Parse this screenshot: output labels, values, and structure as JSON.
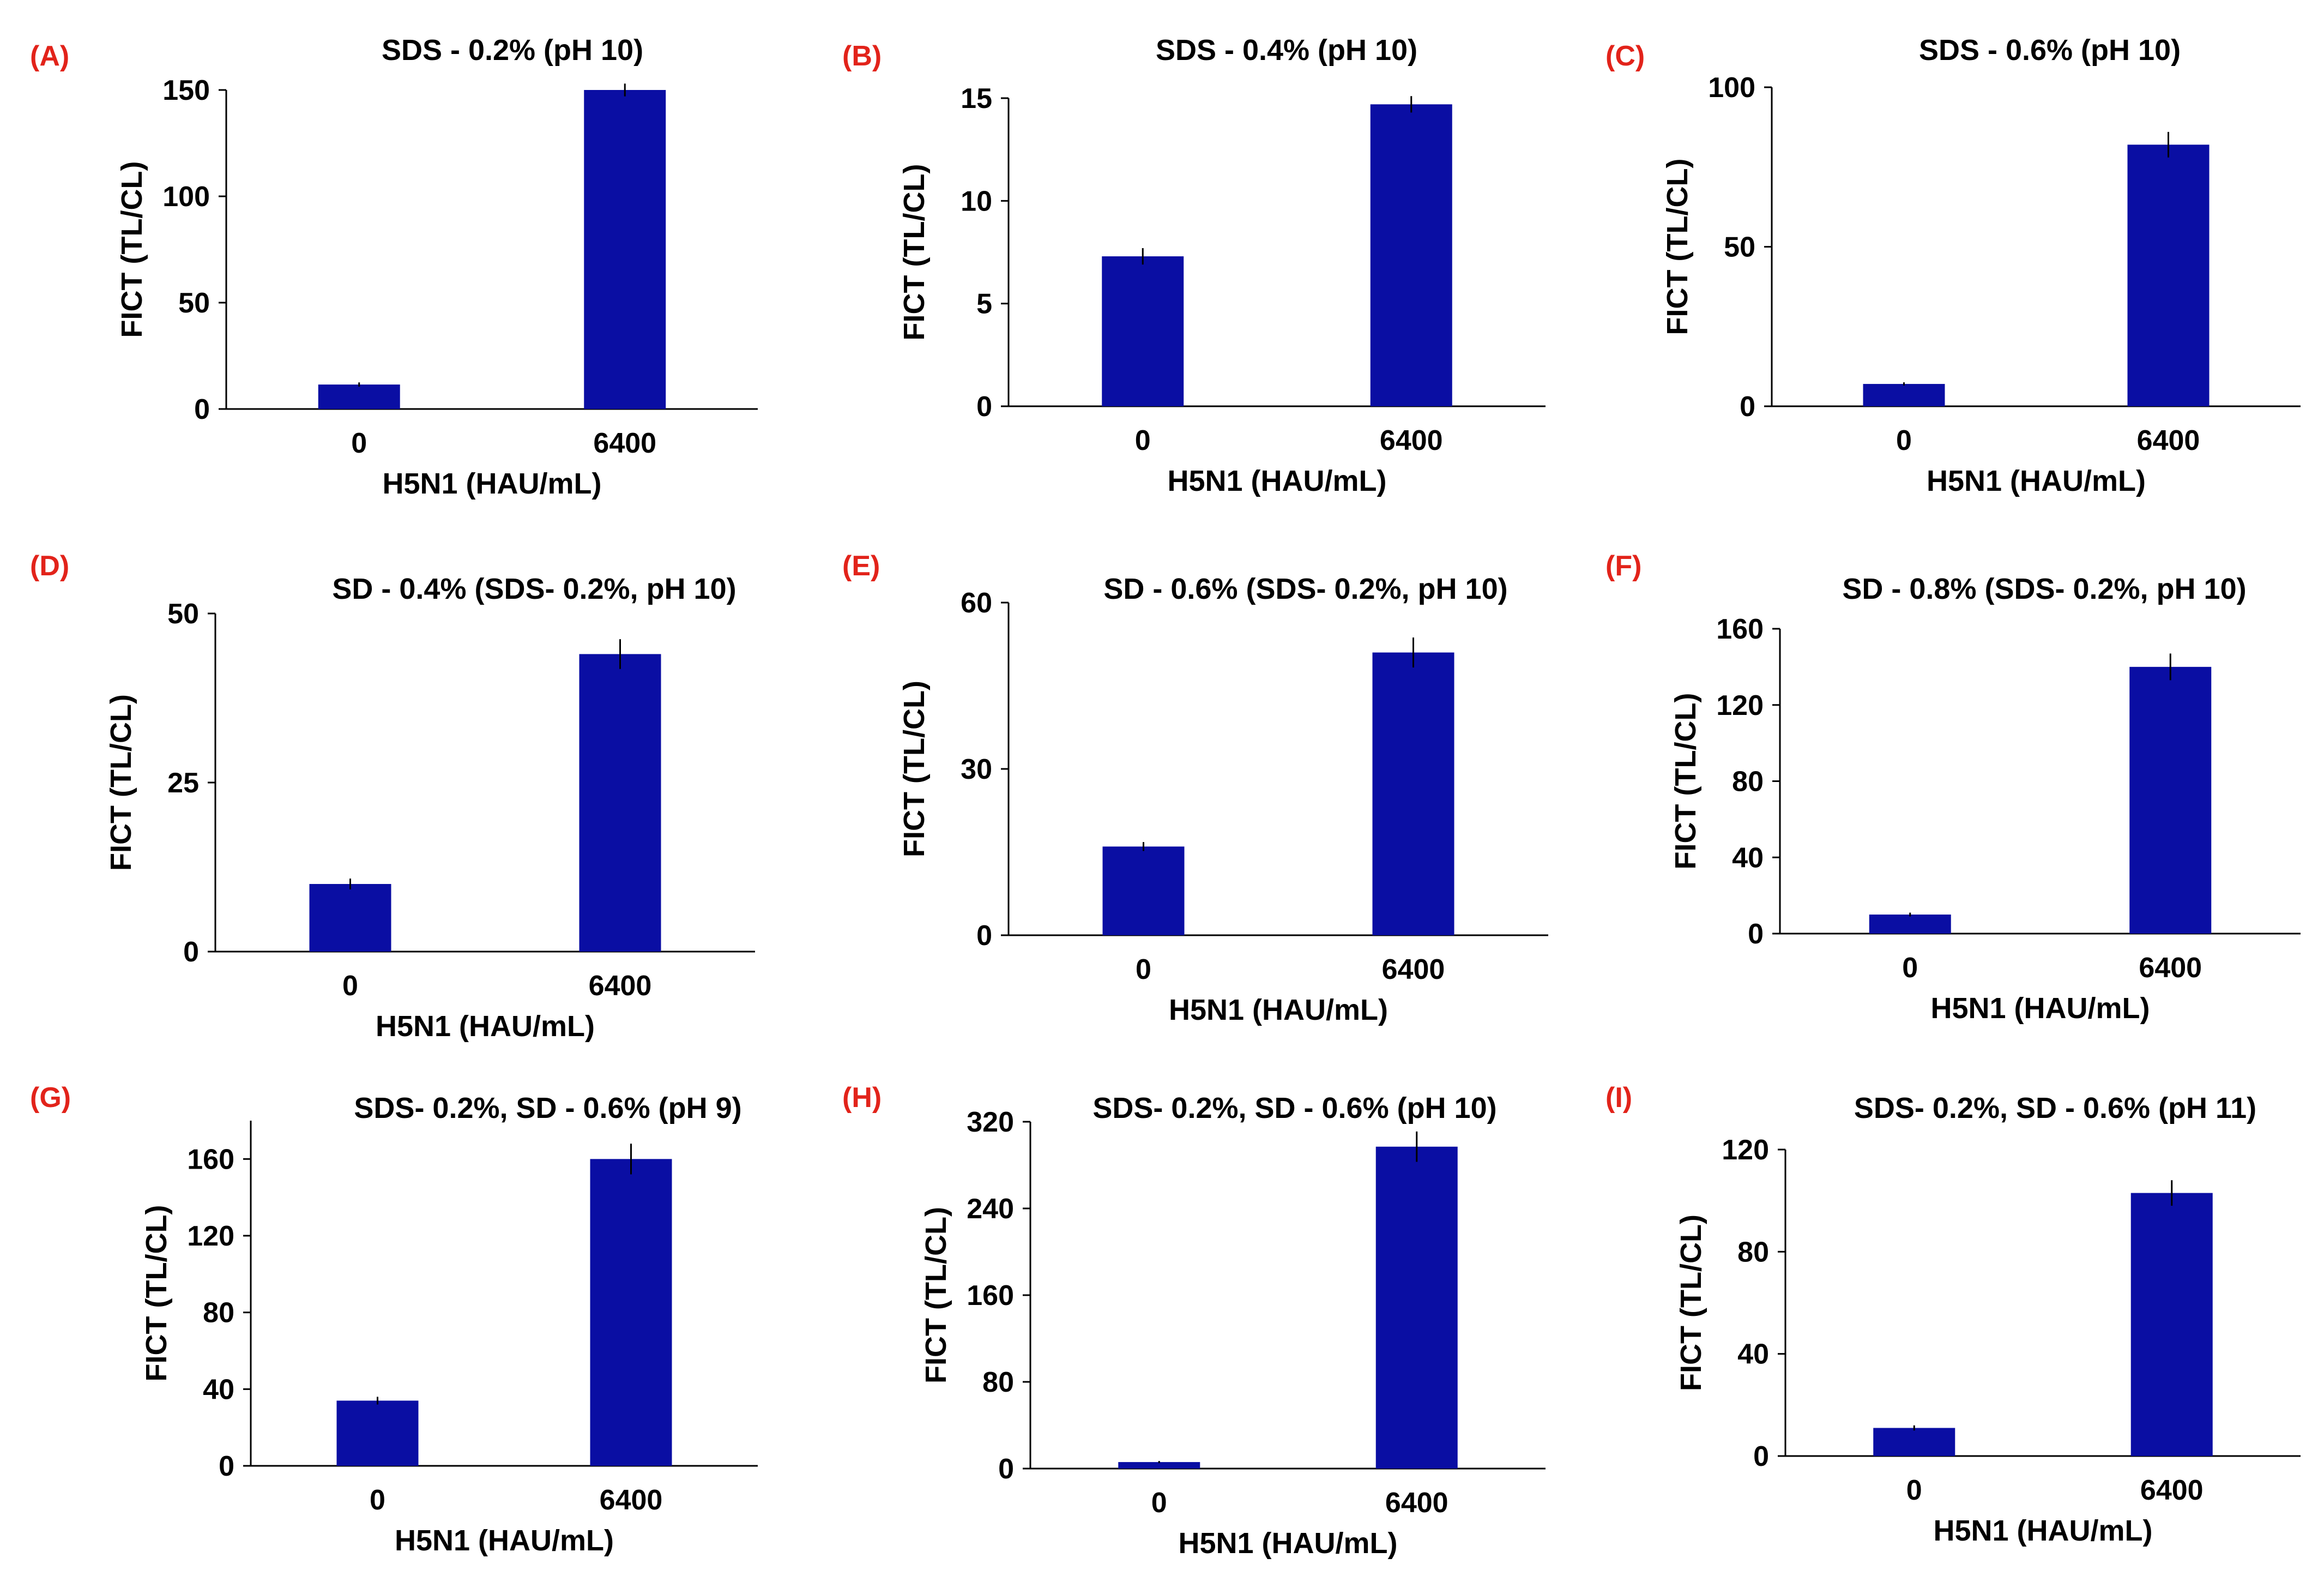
{
  "colors": {
    "bar": "#0a0ea3",
    "panel_label": "#e2231a",
    "axis": "#000000"
  },
  "chart_data": [
    {
      "type": "bar",
      "panel": "(A)",
      "title": "SDS - 0.2% (pH 10)",
      "categories": [
        "0",
        "6400"
      ],
      "values": [
        11.5,
        150
      ],
      "errors": [
        1,
        3
      ],
      "xlabel": "H5N1 (HAU/mL)",
      "ylabel": "FICT (TL/CL)",
      "ylim": [
        0,
        150
      ],
      "yticks": [
        0,
        50,
        100,
        150
      ]
    },
    {
      "type": "bar",
      "panel": "(B)",
      "title": "SDS - 0.4% (pH 10)",
      "categories": [
        "0",
        "6400"
      ],
      "values": [
        7.3,
        14.7
      ],
      "errors": [
        0.4,
        0.4
      ],
      "xlabel": "H5N1 (HAU/mL)",
      "ylabel": "FICT (TL/CL)",
      "ylim": [
        0,
        15
      ],
      "yticks": [
        0,
        5,
        10,
        15
      ]
    },
    {
      "type": "bar",
      "panel": "(C)",
      "title": "SDS - 0.6% (pH 10)",
      "categories": [
        "0",
        "6400"
      ],
      "values": [
        7,
        82
      ],
      "errors": [
        0.5,
        4
      ],
      "xlabel": "H5N1 (HAU/mL)",
      "ylabel": "FICT (TL/CL)",
      "ylim": [
        0,
        100
      ],
      "yticks": [
        0,
        50,
        100
      ]
    },
    {
      "type": "bar",
      "panel": "(D)",
      "title": "SD - 0.4% (SDS- 0.2%, pH 10)",
      "categories": [
        "0",
        "6400"
      ],
      "values": [
        10,
        44
      ],
      "errors": [
        0.8,
        2.2
      ],
      "xlabel": "H5N1 (HAU/mL)",
      "ylabel": "FICT (TL/CL)",
      "ylim": [
        0,
        50
      ],
      "yticks": [
        0,
        25,
        50
      ]
    },
    {
      "type": "bar",
      "panel": "(E)",
      "title": "SD - 0.6% (SDS- 0.2%, pH 10)",
      "categories": [
        "0",
        "6400"
      ],
      "values": [
        16,
        51
      ],
      "errors": [
        0.8,
        2.7
      ],
      "xlabel": "H5N1 (HAU/mL)",
      "ylabel": "FICT (TL/CL)",
      "ylim": [
        0,
        60
      ],
      "yticks": [
        0,
        30,
        60
      ]
    },
    {
      "type": "bar",
      "panel": "(F)",
      "title": "SD - 0.8% (SDS- 0.2%, pH 10)",
      "categories": [
        "0",
        "6400"
      ],
      "values": [
        10,
        140
      ],
      "errors": [
        1,
        7
      ],
      "xlabel": "H5N1 (HAU/mL)",
      "ylabel": "FICT (TL/CL)",
      "ylim": [
        0,
        160
      ],
      "yticks": [
        0,
        40,
        80,
        120,
        160
      ]
    },
    {
      "type": "bar",
      "panel": "(G)",
      "title": "SDS- 0.2%, SD - 0.6% (pH 9)",
      "categories": [
        "0",
        "6400"
      ],
      "values": [
        34,
        160
      ],
      "errors": [
        2,
        8
      ],
      "xlabel": "H5N1 (HAU/mL)",
      "ylabel": "FICT (TL/CL)",
      "ylim": [
        0,
        180
      ],
      "yticks": [
        0,
        40,
        80,
        120,
        160
      ]
    },
    {
      "type": "bar",
      "panel": "(H)",
      "title": "SDS- 0.2%, SD - 0.6% (pH 10)",
      "categories": [
        "0",
        "6400"
      ],
      "values": [
        6,
        297
      ],
      "errors": [
        1,
        14
      ],
      "xlabel": "H5N1 (HAU/mL)",
      "ylabel": "FICT (TL/CL)",
      "ylim": [
        0,
        320
      ],
      "yticks": [
        0,
        80,
        160,
        240,
        320
      ]
    },
    {
      "type": "bar",
      "panel": "(I)",
      "title": "SDS- 0.2%, SD - 0.6% (pH 11)",
      "categories": [
        "0",
        "6400"
      ],
      "values": [
        11,
        103
      ],
      "errors": [
        1,
        5
      ],
      "xlabel": "H5N1 (HAU/mL)",
      "ylabel": "FICT (TL/CL)",
      "ylim": [
        0,
        120
      ],
      "yticks": [
        0,
        40,
        80,
        120
      ]
    }
  ]
}
